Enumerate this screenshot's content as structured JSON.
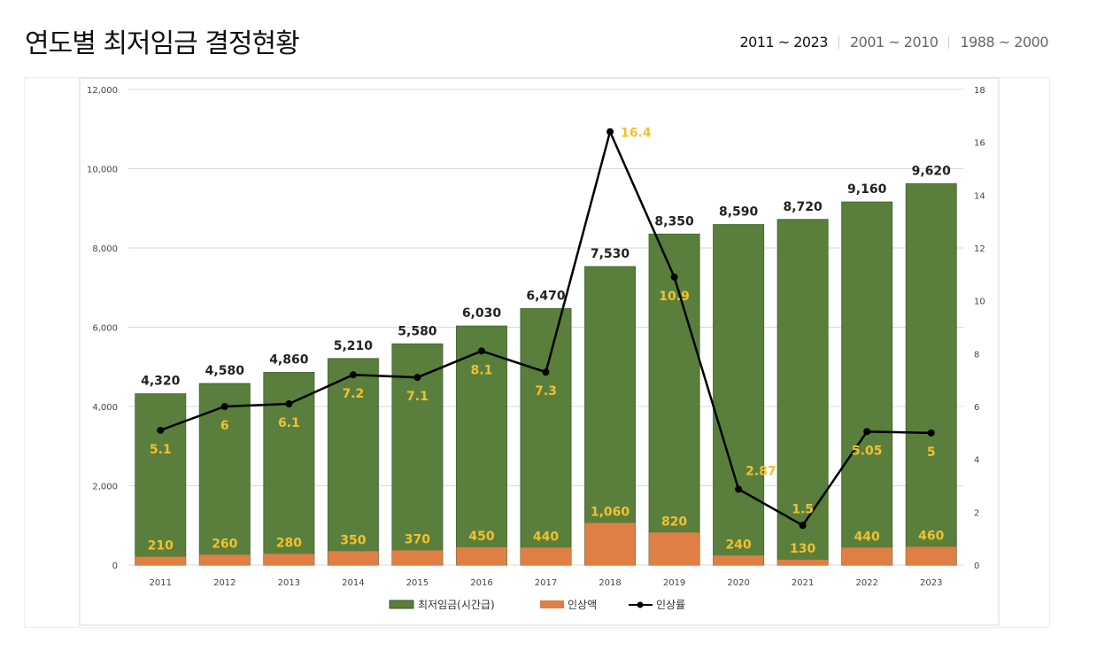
{
  "header": {
    "title": "연도별 최저임금 결정현황",
    "tabs": [
      {
        "label": "2011 ~ 2023",
        "active": true
      },
      {
        "label": "2001 ~ 2010",
        "active": false
      },
      {
        "label": "1988 ~ 2000",
        "active": false
      }
    ]
  },
  "chart_data": {
    "type": "bar",
    "categories": [
      "2011",
      "2012",
      "2013",
      "2014",
      "2015",
      "2016",
      "2017",
      "2018",
      "2019",
      "2020",
      "2021",
      "2022",
      "2023"
    ],
    "series": [
      {
        "name": "최저임금(시간급)",
        "type": "bar",
        "axis": "left",
        "color": "#5a7f3c",
        "values": [
          4320,
          4580,
          4860,
          5210,
          5580,
          6030,
          6470,
          7530,
          8350,
          8590,
          8720,
          9160,
          9620
        ]
      },
      {
        "name": "인상액",
        "type": "bar",
        "axis": "left",
        "color": "#e07f45",
        "values": [
          210,
          260,
          280,
          350,
          370,
          450,
          440,
          1060,
          820,
          240,
          130,
          440,
          460
        ]
      },
      {
        "name": "인상률",
        "type": "line",
        "axis": "right",
        "color": "#000000",
        "values": [
          5.1,
          6,
          6.1,
          7.2,
          7.1,
          8.1,
          7.3,
          16.4,
          10.9,
          2.87,
          1.5,
          5.05,
          5
        ]
      }
    ],
    "value_labels": {
      "wage": [
        "4,320",
        "4,580",
        "4,860",
        "5,210",
        "5,580",
        "6,030",
        "6,470",
        "7,530",
        "8,350",
        "8,590",
        "8,720",
        "9,160",
        "9,620"
      ],
      "increase": [
        "210",
        "260",
        "280",
        "350",
        "370",
        "450",
        "440",
        "1,060",
        "820",
        "240",
        "130",
        "440",
        "460"
      ],
      "rate": [
        "5.1",
        "6",
        "6.1",
        "7.2",
        "7.1",
        "8.1",
        "7.3",
        "16.4",
        "10.9",
        "2.87",
        "1.5",
        "5.05",
        "5"
      ]
    },
    "left_axis": {
      "ylim": [
        0,
        12000
      ],
      "ticks": [
        "0",
        "2,000",
        "4,000",
        "6,000",
        "8,000",
        "10,000",
        "12,000"
      ]
    },
    "right_axis": {
      "ylim": [
        0,
        18
      ],
      "ticks": [
        "0",
        "2",
        "4",
        "6",
        "8",
        "10",
        "12",
        "14",
        "16",
        "18"
      ]
    },
    "grid": true,
    "legend": "bottom",
    "label_color": "#f2c12e"
  }
}
